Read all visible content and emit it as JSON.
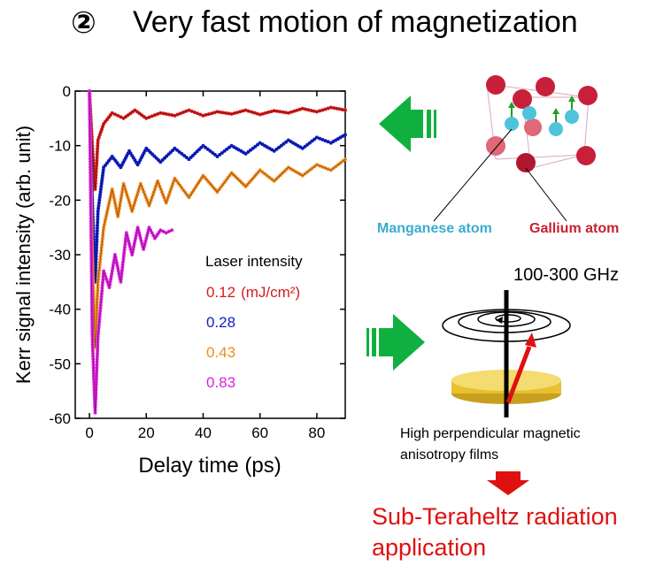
{
  "title": {
    "number": "②",
    "text": "Very fast motion of magnetization"
  },
  "chart_data": {
    "type": "scatter",
    "xlabel": "Delay time (ps)",
    "ylabel": "Kerr signal intensity (arb. unit)",
    "xlim": [
      -5,
      90
    ],
    "ylim": [
      -60,
      0
    ],
    "xticks": [
      0,
      20,
      40,
      60,
      80
    ],
    "yticks": [
      0,
      -10,
      -20,
      -30,
      -40,
      -50,
      -60
    ],
    "xtick_labels": [
      "0",
      "20",
      "40",
      "60",
      "80"
    ],
    "ytick_labels": [
      "0",
      "-10",
      "-20",
      "-30",
      "-40",
      "-50",
      "-60"
    ],
    "legend_title": "Laser intensity",
    "legend_unit": "(mJ/cm²)",
    "grid": false,
    "series": [
      {
        "name": "0.12",
        "color": "#d81b1b",
        "x": [
          0,
          1,
          2,
          3,
          5,
          8,
          12,
          16,
          20,
          25,
          30,
          35,
          40,
          45,
          50,
          55,
          60,
          65,
          70,
          75,
          80,
          85,
          90
        ],
        "y": [
          0,
          -10,
          -18,
          -9,
          -6,
          -4,
          -5,
          -3.5,
          -5,
          -4,
          -4.5,
          -3.5,
          -4.5,
          -3.8,
          -4.2,
          -3.5,
          -4.3,
          -3.6,
          -4,
          -3.2,
          -3.8,
          -3,
          -3.5
        ]
      },
      {
        "name": "0.28",
        "color": "#1020c8",
        "x": [
          0,
          1,
          2,
          3,
          5,
          8,
          11,
          14,
          17,
          20,
          25,
          30,
          35,
          40,
          45,
          50,
          55,
          60,
          65,
          70,
          75,
          80,
          85,
          90
        ],
        "y": [
          0,
          -20,
          -35,
          -22,
          -14,
          -12,
          -14,
          -11,
          -13.5,
          -10.5,
          -13,
          -10.5,
          -12.5,
          -10,
          -12,
          -10,
          -11.5,
          -9.5,
          -11,
          -9,
          -10.5,
          -8.5,
          -9.5,
          -8
        ]
      },
      {
        "name": "0.43",
        "color": "#f28c1e",
        "x": [
          0,
          1,
          2,
          3,
          5,
          8,
          10,
          12,
          15,
          18,
          21,
          24,
          27,
          30,
          35,
          40,
          45,
          50,
          55,
          60,
          65,
          70,
          75,
          80,
          85,
          90
        ],
        "y": [
          0,
          -30,
          -47,
          -35,
          -25,
          -18,
          -23,
          -17,
          -22,
          -17,
          -21,
          -16.5,
          -20.5,
          -16,
          -19.5,
          -15.5,
          -18.5,
          -15,
          -17.5,
          -14.5,
          -16.5,
          -14,
          -15.5,
          -13.5,
          -14.5,
          -12.5
        ]
      },
      {
        "name": "0.83",
        "color": "#e020e0",
        "x": [
          0,
          1,
          2,
          3,
          5,
          7,
          9,
          11,
          13,
          15,
          17,
          19,
          21,
          23,
          25,
          27,
          29
        ],
        "y": [
          0,
          -45,
          -59,
          -45,
          -33,
          -36,
          -30,
          -35,
          -26,
          -30,
          -25,
          -29,
          -25,
          -27,
          -25.5,
          -26,
          -25.5
        ]
      }
    ]
  },
  "labels": {
    "manganese": "Manganese atom",
    "gallium": "Gallium atom",
    "frequency": "100-300 GHz",
    "film_line1": "High perpendicular magnetic",
    "film_line2": "anisotropy films",
    "radiation_line1": "Sub-Teraheltz radiation",
    "radiation_line2": "application"
  },
  "colors": {
    "arrow_green": "#10b040",
    "arrow_red": "#e01010",
    "manganese": "#4fc3dc",
    "gallium": "#c8203a",
    "disk": "#e8c030",
    "spin": "#e01010"
  }
}
